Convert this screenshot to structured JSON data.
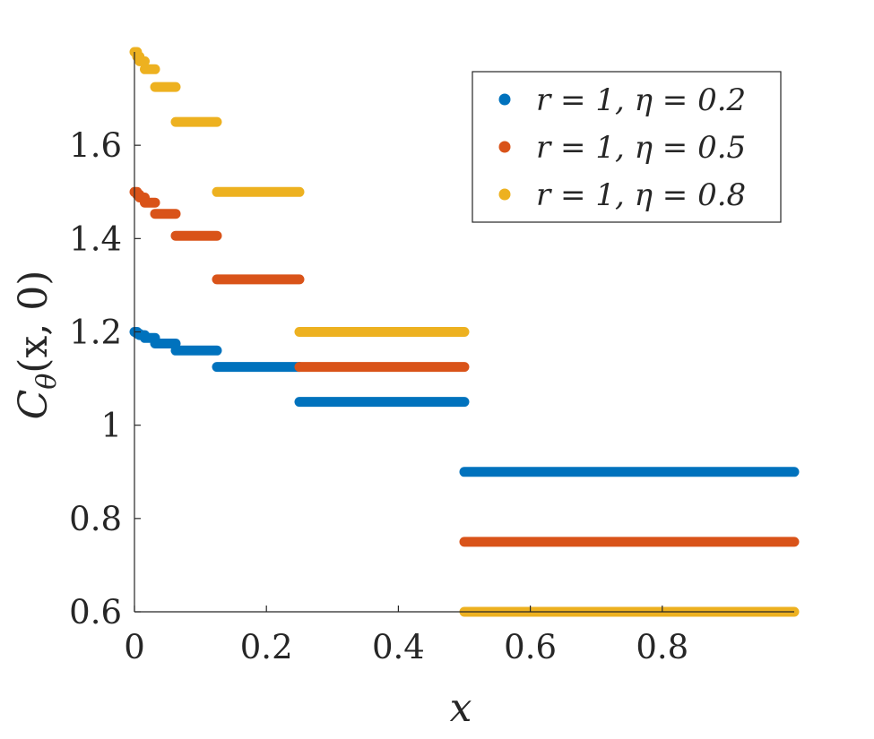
{
  "chart_data": {
    "type": "scatter",
    "xlabel": "x",
    "ylabel": "C_θ(x,0)",
    "ylabel_parts": [
      "C",
      "θ",
      "(x, 0)"
    ],
    "xlim": [
      0,
      1
    ],
    "ylim": [
      0.6,
      1.8
    ],
    "xticks": [
      0,
      0.2,
      0.4,
      0.6,
      0.8
    ],
    "xtick_labels": [
      "0",
      "0.2",
      "0.4",
      "0.6",
      "0.8"
    ],
    "yticks": [
      0.6,
      0.8,
      1,
      1.2,
      1.4,
      1.6
    ],
    "ytick_labels": [
      "0.6",
      "0.8",
      "1",
      "1.2",
      "1.4",
      "1.6"
    ],
    "grid": false,
    "legend_position": "top-right",
    "series": [
      {
        "name": "r = 1, η = 0.2",
        "color": "#0072BD",
        "segments": [
          {
            "x": [
              0.0,
              0.0039
            ],
            "y": 1.2
          },
          {
            "x": [
              0.0039,
              0.0078
            ],
            "y": 1.196
          },
          {
            "x": [
              0.0078,
              0.0156
            ],
            "y": 1.193
          },
          {
            "x": [
              0.0156,
              0.0313
            ],
            "y": 1.187
          },
          {
            "x": [
              0.0313,
              0.0625
            ],
            "y": 1.175
          },
          {
            "x": [
              0.0625,
              0.125
            ],
            "y": 1.16
          },
          {
            "x": [
              0.125,
              0.25
            ],
            "y": 1.125
          },
          {
            "x": [
              0.25,
              0.5
            ],
            "y": 1.05
          },
          {
            "x": [
              0.5,
              1.0
            ],
            "y": 0.9
          }
        ]
      },
      {
        "name": "r = 1, η = 0.5",
        "color": "#D95319",
        "segments": [
          {
            "x": [
              0.0,
              0.0039
            ],
            "y": 1.5
          },
          {
            "x": [
              0.0039,
              0.0078
            ],
            "y": 1.494
          },
          {
            "x": [
              0.0078,
              0.0156
            ],
            "y": 1.488
          },
          {
            "x": [
              0.0156,
              0.0313
            ],
            "y": 1.477
          },
          {
            "x": [
              0.0313,
              0.0625
            ],
            "y": 1.453
          },
          {
            "x": [
              0.0625,
              0.125
            ],
            "y": 1.406
          },
          {
            "x": [
              0.125,
              0.25
            ],
            "y": 1.3125
          },
          {
            "x": [
              0.25,
              0.5
            ],
            "y": 1.125
          },
          {
            "x": [
              0.5,
              1.0
            ],
            "y": 0.75
          }
        ]
      },
      {
        "name": "r = 1, η = 0.8",
        "color": "#EDB120",
        "segments": [
          {
            "x": [
              0.0,
              0.0039
            ],
            "y": 1.8
          },
          {
            "x": [
              0.0039,
              0.0078
            ],
            "y": 1.79
          },
          {
            "x": [
              0.0078,
              0.0156
            ],
            "y": 1.78
          },
          {
            "x": [
              0.0156,
              0.0313
            ],
            "y": 1.763
          },
          {
            "x": [
              0.0313,
              0.0625
            ],
            "y": 1.725
          },
          {
            "x": [
              0.0625,
              0.125
            ],
            "y": 1.65
          },
          {
            "x": [
              0.125,
              0.25
            ],
            "y": 1.5
          },
          {
            "x": [
              0.25,
              0.5
            ],
            "y": 1.2
          },
          {
            "x": [
              0.5,
              1.0
            ],
            "y": 0.6
          }
        ]
      }
    ]
  }
}
